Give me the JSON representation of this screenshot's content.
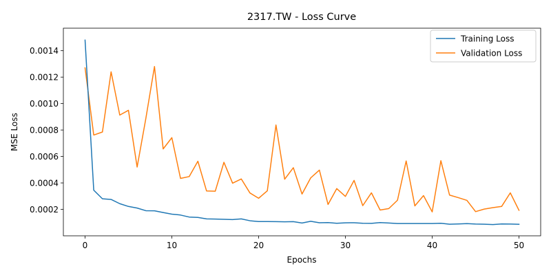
{
  "chart_data": {
    "type": "line",
    "title": "2317.TW - Loss Curve",
    "xlabel": "Epochs",
    "ylabel": "MSE Loss",
    "xlim": [
      -2.5,
      52.5
    ],
    "ylim": [
      0.0,
      0.00157
    ],
    "xticks": [
      0,
      10,
      20,
      30,
      40,
      50
    ],
    "xtick_labels": [
      "0",
      "10",
      "20",
      "30",
      "40",
      "50"
    ],
    "yticks": [
      0.0002,
      0.0004,
      0.0006,
      0.0008,
      0.001,
      0.0012,
      0.0014
    ],
    "ytick_labels": [
      "0.0002",
      "0.0004",
      "0.0006",
      "0.0008",
      "0.0010",
      "0.0012",
      "0.0014"
    ],
    "grid": false,
    "legend_position": "top-right",
    "x": [
      0,
      1,
      2,
      3,
      4,
      5,
      6,
      7,
      8,
      9,
      10,
      11,
      12,
      13,
      14,
      15,
      16,
      17,
      18,
      19,
      20,
      21,
      22,
      23,
      24,
      25,
      26,
      27,
      28,
      29,
      30,
      31,
      32,
      33,
      34,
      35,
      36,
      37,
      38,
      39,
      40,
      41,
      42,
      43,
      44,
      45,
      46,
      47,
      48,
      49,
      50
    ],
    "series": [
      {
        "name": "Training Loss",
        "color": "#1f77b4",
        "values": [
          0.00148,
          0.000345,
          0.00028,
          0.000275,
          0.000243,
          0.000222,
          0.00021,
          0.00019,
          0.000189,
          0.000176,
          0.000164,
          0.000157,
          0.000142,
          0.000139,
          0.000128,
          0.000127,
          0.000125,
          0.000123,
          0.000128,
          0.000114,
          0.000108,
          0.000108,
          0.000107,
          0.000106,
          0.000107,
          9.7e-05,
          0.00011,
          9.9e-05,
          0.0001,
          9.5e-05,
          9.8e-05,
          9.9e-05,
          9.5e-05,
          9.4e-05,
          0.0001,
          9.7e-05,
          9.3e-05,
          9.3e-05,
          9.3e-05,
          9.3e-05,
          9.3e-05,
          9.5e-05,
          8.8e-05,
          9e-05,
          9.2e-05,
          8.9e-05,
          8.8e-05,
          8.5e-05,
          9e-05,
          8.9e-05,
          8.7e-05
        ]
      },
      {
        "name": "Validation Loss",
        "color": "#ff7f0e",
        "values": [
          0.00127,
          0.000762,
          0.000785,
          0.00124,
          0.000913,
          0.000949,
          0.00052,
          0.000886,
          0.00128,
          0.000657,
          0.000742,
          0.000434,
          0.000448,
          0.000564,
          0.000339,
          0.000337,
          0.000556,
          0.000398,
          0.00043,
          0.000324,
          0.000284,
          0.00034,
          0.000838,
          0.000428,
          0.000515,
          0.000316,
          0.000438,
          0.000497,
          0.000237,
          0.000357,
          0.000298,
          0.000419,
          0.000228,
          0.000325,
          0.000195,
          0.000206,
          0.000269,
          0.000566,
          0.000226,
          0.000304,
          0.000181,
          0.000568,
          0.000308,
          0.000289,
          0.000268,
          0.000183,
          0.000202,
          0.000213,
          0.000222,
          0.000325,
          0.000193
        ]
      }
    ]
  }
}
